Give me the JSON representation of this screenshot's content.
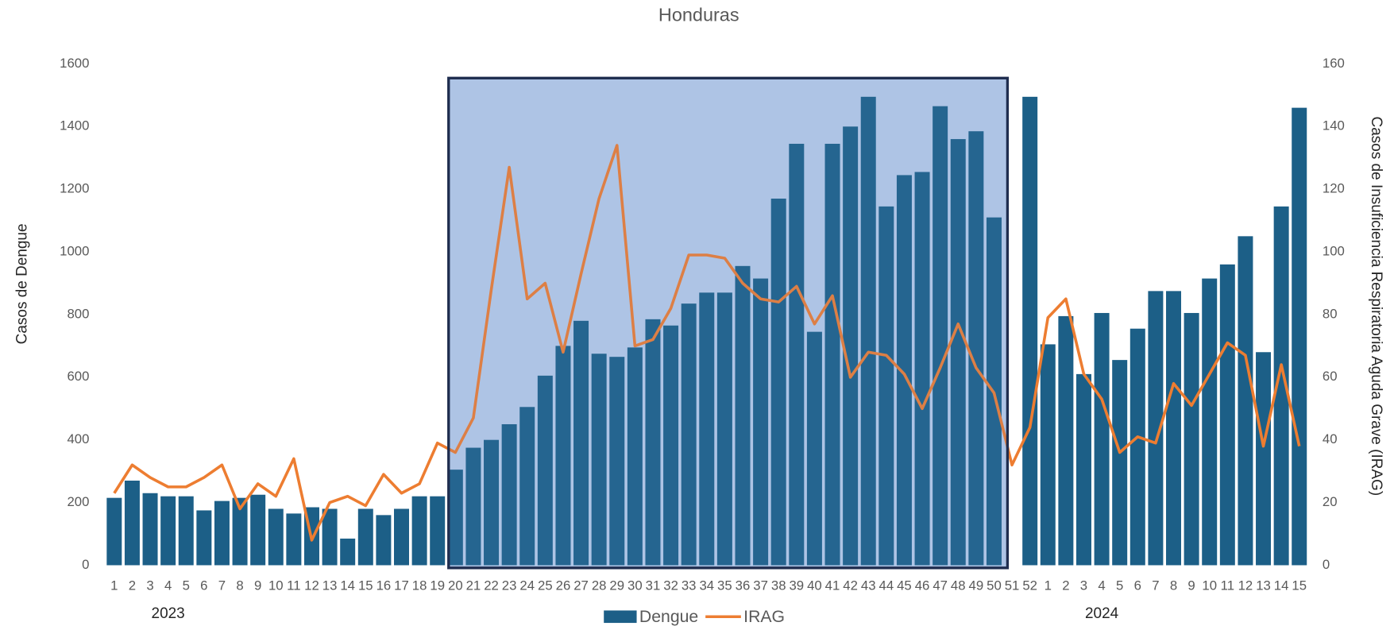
{
  "chart_data": {
    "type": "bar-line",
    "title": "Honduras",
    "y_label": "Casos de Dengue",
    "y2_label": "Casos de Insuficiencia Respiratoria Aguda Grave (IRAG)",
    "category_groups": [
      {
        "label": "2023",
        "categories": [
          "1",
          "2",
          "3",
          "4",
          "5",
          "6",
          "7",
          "8",
          "9",
          "10",
          "11",
          "12",
          "13",
          "14",
          "15",
          "16",
          "17",
          "18",
          "19",
          "20",
          "21",
          "22",
          "23",
          "24",
          "25",
          "26",
          "27",
          "28",
          "29",
          "30",
          "31",
          "32",
          "33",
          "34",
          "35",
          "36",
          "37",
          "38",
          "39",
          "40",
          "41",
          "42",
          "43",
          "44",
          "45",
          "46",
          "47",
          "48",
          "49",
          "50",
          "51",
          "52"
        ]
      },
      {
        "label": "2024",
        "categories": [
          "1",
          "2",
          "3",
          "4",
          "5",
          "6",
          "7",
          "8",
          "9",
          "10",
          "11",
          "12",
          "13",
          "14",
          "15"
        ]
      }
    ],
    "series": [
      {
        "name": "Dengue",
        "type": "bar",
        "color": "#1c5f87",
        "values": [
          215,
          270,
          230,
          220,
          220,
          175,
          205,
          215,
          225,
          180,
          165,
          185,
          180,
          85,
          180,
          160,
          180,
          220,
          220,
          305,
          375,
          400,
          450,
          505,
          605,
          700,
          780,
          675,
          665,
          695,
          785,
          765,
          835,
          870,
          870,
          955,
          915,
          1170,
          1345,
          745,
          1345,
          1400,
          1495,
          1145,
          1245,
          1255,
          1465,
          1360,
          1385,
          1110,
          null,
          1495,
          705,
          795,
          610,
          805,
          655,
          755,
          875,
          875,
          805,
          915,
          960,
          1050,
          680,
          1145,
          1460
        ]
      },
      {
        "name": "IRAG",
        "type": "line",
        "axis": "y2",
        "color": "#ed7d31",
        "values": [
          23,
          32,
          28,
          25,
          25,
          28,
          32,
          18,
          26,
          22,
          34,
          8,
          20,
          22,
          19,
          29,
          23,
          26,
          39,
          36,
          47,
          88,
          127,
          85,
          90,
          68,
          93,
          117,
          134,
          70,
          72,
          82,
          99,
          99,
          98,
          90,
          85,
          84,
          89,
          77,
          86,
          60,
          68,
          67,
          61,
          50,
          63,
          77,
          63,
          55,
          32,
          44,
          79,
          85,
          61,
          53,
          36,
          41,
          39,
          58,
          51,
          61,
          71,
          67,
          38,
          64,
          38
        ]
      }
    ],
    "ylim": [
      0,
      1600
    ],
    "yticks": [
      0,
      200,
      400,
      600,
      800,
      1000,
      1200,
      1400,
      1600
    ],
    "y2lim": [
      0,
      160
    ],
    "y2ticks": [
      0,
      20,
      40,
      60,
      80,
      100,
      120,
      140,
      160
    ],
    "grid": false
  }
}
